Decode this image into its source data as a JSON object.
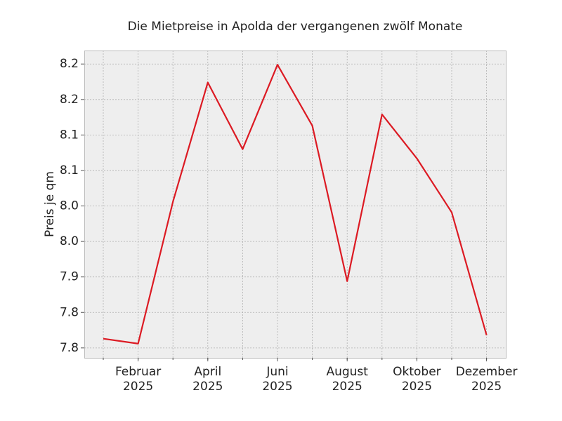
{
  "chart_data": {
    "type": "line",
    "title": "Die Mietpreise in Apolda der vergangenen zwölf Monate",
    "ylabel": "Preis je qm",
    "x": [
      "2025-01",
      "2025-02",
      "2025-03",
      "2025-04",
      "2025-05",
      "2025-06",
      "2025-07",
      "2025-08",
      "2025-09",
      "2025-10",
      "2025-11",
      "2025-12"
    ],
    "series": [
      {
        "color": "#dc1a23",
        "values": [
          7.813,
          7.806,
          8.006,
          8.174,
          8.08,
          8.199,
          8.113,
          7.894,
          8.129,
          8.067,
          7.991,
          7.818
        ]
      }
    ],
    "ylim": [
      7.786,
      8.219
    ],
    "yticks": [
      7.8,
      {
        "value": 7.85,
        "label": "7.8"
      },
      7.9,
      {
        "value": 7.95,
        "label": "8.0"
      },
      {
        "value": 8.0,
        "label": "8.0"
      },
      {
        "value": 8.05,
        "label": "8.1"
      },
      8.1,
      {
        "value": 8.15,
        "label": "8.2"
      },
      8.2
    ],
    "xticks": [
      {
        "value": "2025-02",
        "label": [
          "Februar",
          "2025"
        ]
      },
      {
        "value": "2025-04",
        "label": [
          "April",
          "2025"
        ]
      },
      {
        "value": "2025-06",
        "label": [
          "Juni",
          "2025"
        ]
      },
      {
        "value": "2025-08",
        "label": [
          "August",
          "2025"
        ]
      },
      {
        "value": "2025-10",
        "label": [
          "Oktober",
          "2025"
        ]
      },
      {
        "value": "2025-12",
        "label": [
          "Dezember",
          "2025"
        ]
      }
    ],
    "grid": true
  }
}
